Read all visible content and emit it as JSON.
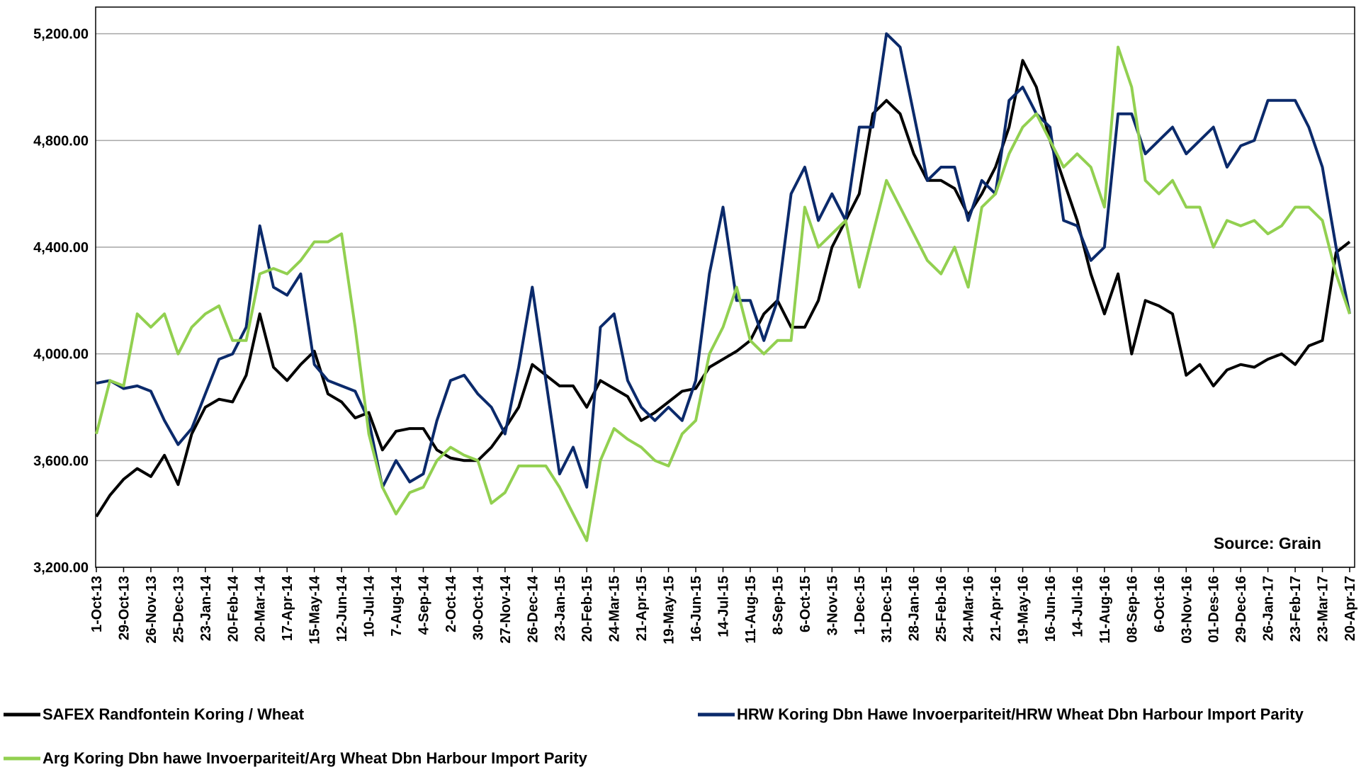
{
  "chart_data": {
    "type": "line",
    "annotation": "Source: Grain",
    "categories": [
      "1-Oct-13",
      null,
      "29-Oct-13",
      null,
      "26-Nov-13",
      null,
      "25-Dec-13",
      null,
      "23-Jan-14",
      null,
      "20-Feb-14",
      null,
      "20-Mar-14",
      null,
      "17-Apr-14",
      null,
      "15-May-14",
      null,
      "12-Jun-14",
      null,
      "10-Jul-14",
      null,
      "7-Aug-14",
      null,
      "4-Sep-14",
      null,
      "2-Oct-14",
      null,
      "30-Oct-14",
      null,
      "27-Nov-14",
      null,
      "26-Dec-14",
      null,
      "23-Jan-15",
      null,
      "20-Feb-15",
      null,
      "24-Mar-15",
      null,
      "21-Apr-15",
      null,
      "19-May-15",
      null,
      "16-Jun-15",
      null,
      "14-Jul-15",
      null,
      "11-Aug-15",
      null,
      "8-Sep-15",
      null,
      "6-Oct-15",
      null,
      "3-Nov-15",
      null,
      "1-Dec-15",
      null,
      "31-Dec-15",
      null,
      "28-Jan-16",
      null,
      "25-Feb-16",
      null,
      "24-Mar-16",
      null,
      "21-Apr-16",
      null,
      "19-May-16",
      null,
      "16-Jun-16",
      null,
      "14-Jul-16",
      null,
      "11-Aug-16",
      null,
      "08-Sep-16",
      null,
      "6-Oct-16",
      null,
      "03-Nov-16",
      null,
      "01-Des-16",
      null,
      "29-Dec-16",
      null,
      "26-Jan-17",
      null,
      "23-Feb-17",
      null,
      "23-Mar-17",
      null,
      "20-Apr-17"
    ],
    "series": [
      {
        "name": "SAFEX  Randfontein Koring / Wheat",
        "color": "#000000",
        "values": [
          3390,
          3470,
          3530,
          3570,
          3540,
          3620,
          3510,
          3700,
          3800,
          3830,
          3820,
          3920,
          4150,
          3950,
          3900,
          3960,
          4010,
          3850,
          3820,
          3760,
          3780,
          3640,
          3710,
          3720,
          3720,
          3640,
          3610,
          3600,
          3600,
          3650,
          3720,
          3800,
          3960,
          3920,
          3880,
          3880,
          3800,
          3900,
          3870,
          3840,
          3750,
          3780,
          3820,
          3860,
          3870,
          3950,
          3980,
          4010,
          4050,
          4150,
          4200,
          4100,
          4100,
          4200,
          4400,
          4500,
          4600,
          4900,
          4950,
          4900,
          4750,
          4650,
          4650,
          4620,
          4520,
          4600,
          4700,
          4850,
          5100,
          5000,
          4800,
          4650,
          4500,
          4300,
          4150,
          4300,
          4000,
          4200,
          4180,
          4150,
          3920,
          3960,
          3880,
          3940,
          3960,
          3950,
          3980,
          4000,
          3960,
          4030,
          4050,
          4380,
          4420
        ]
      },
      {
        "name": "HRW Koring Dbn Hawe Invoerpariteit/HRW Wheat Dbn Harbour Import Parity",
        "color": "#0b2a6b",
        "values": [
          3890,
          3900,
          3870,
          3880,
          3860,
          3750,
          3660,
          3720,
          3850,
          3980,
          4000,
          4100,
          4480,
          4250,
          4220,
          4300,
          3960,
          3900,
          3880,
          3860,
          3750,
          3500,
          3600,
          3520,
          3550,
          3750,
          3900,
          3920,
          3850,
          3800,
          3700,
          3950,
          4250,
          3900,
          3550,
          3650,
          3500,
          4100,
          4150,
          3900,
          3800,
          3750,
          3800,
          3750,
          3900,
          4300,
          4550,
          4200,
          4200,
          4050,
          4200,
          4600,
          4700,
          4500,
          4600,
          4500,
          4850,
          4850,
          5200,
          5150,
          4900,
          4650,
          4700,
          4700,
          4500,
          4650,
          4600,
          4950,
          5000,
          4900,
          4850,
          4500,
          4480,
          4350,
          4400,
          4900,
          4900,
          4750,
          4800,
          4850,
          4750,
          4800,
          4850,
          4700,
          4780,
          4800,
          4950,
          4950,
          4950,
          4850,
          4700,
          4400,
          4150
        ]
      },
      {
        "name": "Arg Koring Dbn hawe Invoerpariteit/Arg Wheat Dbn Harbour Import Parity",
        "color": "#92d050",
        "values": [
          3700,
          3900,
          3880,
          4150,
          4100,
          4150,
          4000,
          4100,
          4150,
          4180,
          4050,
          4050,
          4300,
          4320,
          4300,
          4350,
          4420,
          4420,
          4450,
          4100,
          3700,
          3500,
          3400,
          3480,
          3500,
          3600,
          3650,
          3620,
          3600,
          3440,
          3480,
          3580,
          3580,
          3580,
          3500,
          3400,
          3300,
          3600,
          3720,
          3680,
          3650,
          3600,
          3580,
          3700,
          3750,
          4000,
          4100,
          4250,
          4050,
          4000,
          4050,
          4050,
          4550,
          4400,
          4450,
          4500,
          4250,
          4450,
          4650,
          4550,
          4450,
          4350,
          4300,
          4400,
          4250,
          4550,
          4600,
          4750,
          4850,
          4900,
          4800,
          4700,
          4750,
          4700,
          4550,
          5150,
          5000,
          4650,
          4600,
          4650,
          4550,
          4550,
          4400,
          4500,
          4480,
          4500,
          4450,
          4480,
          4550,
          4550,
          4500,
          4300,
          4150
        ]
      }
    ],
    "ylim": [
      3200,
      5300
    ],
    "yticks": [
      {
        "value": 3200,
        "label": "3,200.00"
      },
      {
        "value": 3600,
        "label": "3,600.00"
      },
      {
        "value": 4000,
        "label": "4,000.00"
      },
      {
        "value": 4400,
        "label": "4,400.00"
      },
      {
        "value": 4800,
        "label": "4,800.00"
      },
      {
        "value": 5200,
        "label": "5,200.00"
      }
    ],
    "grid": true
  }
}
